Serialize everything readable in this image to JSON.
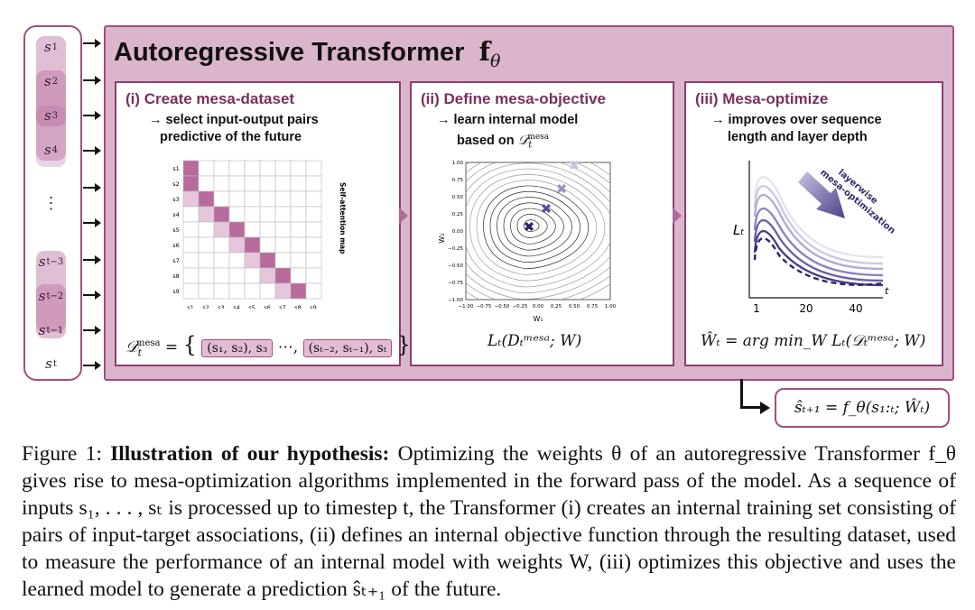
{
  "tokens": {
    "s1": "s",
    "s1_sub": "1",
    "s2": "s",
    "s2_sub": "2",
    "s3": "s",
    "s3_sub": "3",
    "s4": "s",
    "s4_sub": "4",
    "dots": "⋮",
    "st3": "s",
    "st3_sub": "t−3",
    "st2": "s",
    "st2_sub": "t−2",
    "st1": "s",
    "st1_sub": "t−1",
    "st": "s",
    "st_sub": "t"
  },
  "main_title": "Autoregressive Transformer",
  "main_title_symbol": "f",
  "main_title_sub": "θ",
  "panel1": {
    "title": "(i) Create mesa-dataset",
    "sub_line1": "→ select input-output pairs",
    "sub_line2": "predictive of the future",
    "map_label": "Self-attention map",
    "row_labels": [
      "s1",
      "s2",
      "s3",
      "s4",
      "s5",
      "s6",
      "s7",
      "s8",
      "s9"
    ],
    "col_labels": [
      "s1",
      "s2",
      "s3",
      "s4",
      "s5",
      "s6",
      "s7",
      "s8",
      "s9"
    ],
    "formula_lhs": "𝒟",
    "formula_sup": "mesa",
    "formula_sub": "t",
    "pair1": "(s₁, s₂), s₃",
    "ellipsis": "⋯,",
    "pair2": "(sₜ₋₂, sₜ₋₁), sₜ"
  },
  "panel2": {
    "title": "(ii) Define mesa-objective",
    "sub_line1": "→ learn internal model",
    "sub_line2": "based on",
    "sub_symbol": "𝒟",
    "sub_symbol_sup": "mesa",
    "sub_symbol_sub": "t",
    "xlabel": "W₁",
    "ylabel": "W₂",
    "ticks": [
      "−1.00",
      "−0.75",
      "−0.50",
      "−0.25",
      "0.00",
      "0.25",
      "0.50",
      "0.75",
      "1.00"
    ],
    "formula": "Lₜ(Dₜᵐᵉˢᵃ; W)"
  },
  "panel3": {
    "title": "(iii) Mesa-optimize",
    "sub_line1": "→ improves over sequence",
    "sub_line2": "length and layer depth",
    "ylabel": "Lₜ",
    "xlabel": "t",
    "xticks": [
      "1",
      "20",
      "40"
    ],
    "arrow_line1": "layerwise",
    "arrow_line2": "mesa-optimization",
    "formula": "Ŵₜ = arg min_W Lₜ(𝒟ₜᵐᵉˢᵃ; W)"
  },
  "output": "ŝₜ₊₁ = f_θ(s₁:ₜ; Ŵₜ)",
  "caption": {
    "fig": "Figure 1:",
    "bold": "Illustration of our hypothesis:",
    "text1": "Optimizing the weights θ of an autoregressive Transformer",
    "text2": "f_θ gives rise to mesa-optimization algorithms implemented in the forward pass of the model. As a",
    "text3": "sequence of inputs s₁, . . . , sₜ is processed up to timestep t, the Transformer (i) creates an internal",
    "text4": "training set consisting of pairs of input-target associations, (ii) defines an internal objective function",
    "text5": "through the resulting dataset, used to measure the performance of an internal model with weights W,",
    "text6": "(iii) optimizes this objective and uses the learned model to generate a prediction ŝₜ₊₁ of the future."
  },
  "colors": {
    "accent": "#a14f84",
    "panel_bg": "#dbb6ca",
    "title_color": "#7a2f5e"
  }
}
